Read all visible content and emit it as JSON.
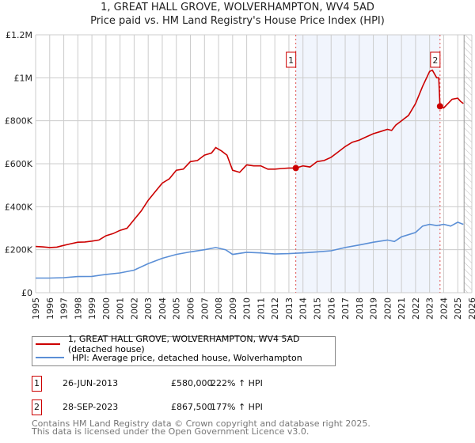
{
  "chart_data": {
    "type": "line",
    "title": "1, GREAT HALL GROVE, WOLVERHAMPTON, WV4 5AD",
    "subtitle": "Price paid vs. HM Land Registry's House Price Index (HPI)",
    "xlim": [
      1995,
      2026
    ],
    "ylim": [
      0,
      1200000
    ],
    "x_ticks": [
      "1995",
      "1996",
      "1997",
      "1998",
      "1999",
      "2000",
      "2001",
      "2002",
      "2003",
      "2004",
      "2005",
      "2006",
      "2007",
      "2008",
      "2009",
      "2010",
      "2011",
      "2012",
      "2013",
      "2014",
      "2015",
      "2016",
      "2017",
      "2018",
      "2019",
      "2020",
      "2021",
      "2022",
      "2023",
      "2024",
      "2025",
      "2026"
    ],
    "y_ticks": [
      {
        "v": 0,
        "label": "£0"
      },
      {
        "v": 200000,
        "label": "£200K"
      },
      {
        "v": 400000,
        "label": "£400K"
      },
      {
        "v": 600000,
        "label": "£600K"
      },
      {
        "v": 800000,
        "label": "£800K"
      },
      {
        "v": 1000000,
        "label": "£1M"
      },
      {
        "v": 1200000,
        "label": "£1.2M"
      }
    ],
    "grid": true,
    "shaded_range": [
      2013.49,
      2023.74
    ],
    "forecast_hatch_from": 2025.45,
    "series": [
      {
        "name": "1, GREAT HALL GROVE, WOLVERHAMPTON, WV4 5AD (detached house)",
        "color": "#cc0000",
        "x": [
          1995,
          1995.5,
          1996,
          1996.5,
          1997,
          1997.5,
          1998,
          1998.5,
          1999,
          1999.5,
          2000,
          2000.5,
          2001,
          2001.5,
          2002,
          2002.5,
          2003,
          2003.5,
          2004,
          2004.5,
          2005,
          2005.5,
          2006,
          2006.5,
          2007,
          2007.5,
          2007.8,
          2008.2,
          2008.6,
          2009,
          2009.5,
          2010,
          2010.5,
          2011,
          2011.5,
          2012,
          2012.5,
          2013,
          2013.49,
          2014,
          2014.5,
          2015,
          2015.5,
          2016,
          2016.5,
          2017,
          2017.5,
          2018,
          2018.5,
          2019,
          2019.5,
          2020,
          2020.3,
          2020.6,
          2021,
          2021.5,
          2022,
          2022.5,
          2023,
          2023.2,
          2023.5,
          2023.65,
          2023.74,
          2024,
          2024.3,
          2024.6,
          2025,
          2025.2,
          2025.4
        ],
        "y": [
          215000,
          213000,
          210000,
          212000,
          220000,
          228000,
          235000,
          236000,
          240000,
          245000,
          265000,
          275000,
          290000,
          300000,
          340000,
          380000,
          430000,
          470000,
          510000,
          530000,
          570000,
          575000,
          610000,
          615000,
          640000,
          650000,
          675000,
          660000,
          640000,
          570000,
          560000,
          595000,
          590000,
          590000,
          575000,
          575000,
          578000,
          580000,
          580000,
          590000,
          585000,
          610000,
          615000,
          630000,
          655000,
          680000,
          700000,
          710000,
          725000,
          740000,
          750000,
          760000,
          755000,
          780000,
          800000,
          825000,
          880000,
          960000,
          1030000,
          1035000,
          1000000,
          1000000,
          867500,
          860000,
          880000,
          900000,
          905000,
          890000,
          880000
        ]
      },
      {
        "name": "HPI: Average price, detached house, Wolverhampton",
        "color": "#5b8fd6",
        "x": [
          1995,
          1996,
          1997,
          1998,
          1999,
          2000,
          2001,
          2002,
          2003,
          2004,
          2005,
          2006,
          2007,
          2007.8,
          2008.5,
          2009,
          2010,
          2011,
          2012,
          2013,
          2014,
          2015,
          2016,
          2017,
          2018,
          2019,
          2020,
          2020.5,
          2021,
          2022,
          2022.5,
          2023,
          2023.5,
          2024,
          2024.5,
          2025,
          2025.4
        ],
        "y": [
          68000,
          68000,
          70000,
          75000,
          76000,
          85000,
          92000,
          105000,
          135000,
          160000,
          178000,
          190000,
          200000,
          210000,
          200000,
          178000,
          188000,
          185000,
          180000,
          182000,
          185000,
          190000,
          195000,
          210000,
          222000,
          235000,
          245000,
          238000,
          260000,
          280000,
          310000,
          318000,
          312000,
          318000,
          310000,
          328000,
          318000
        ]
      }
    ],
    "sales": [
      {
        "id": "1",
        "x": 2013.49,
        "price": 580000
      },
      {
        "id": "2",
        "x": 2023.74,
        "price": 867500
      }
    ]
  },
  "legend": {
    "property": "1, GREAT HALL GROVE, WOLVERHAMPTON, WV4 5AD (detached house)",
    "hpi": "HPI: Average price, detached house, Wolverhampton"
  },
  "transactions": [
    {
      "id": "1",
      "date": "26-JUN-2013",
      "price": "£580,000",
      "hpi": "222% ↑ HPI"
    },
    {
      "id": "2",
      "date": "28-SEP-2023",
      "price": "£867,500",
      "hpi": "177% ↑ HPI"
    }
  ],
  "footer": {
    "line1": "Contains HM Land Registry data © Crown copyright and database right 2025.",
    "line2": "This data is licensed under the Open Government Licence v3.0."
  }
}
